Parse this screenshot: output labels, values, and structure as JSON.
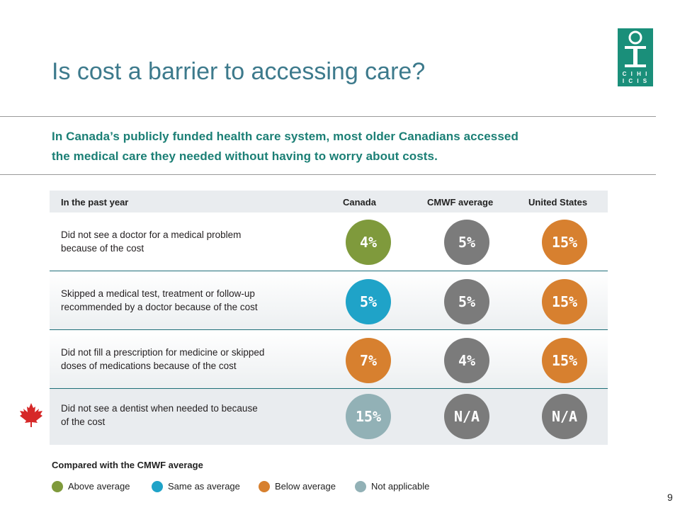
{
  "slide": {
    "title": "Is cost a barrier to accessing care?",
    "subtitle_line1": "In Canada’s publicly funded health care system, most older Canadians accessed",
    "subtitle_line2": "the medical care they needed without having to worry about costs.",
    "logo_text": "CIHI ICIS",
    "page_number": "9"
  },
  "table": {
    "headers": {
      "label": "In the past year",
      "canada": "Canada",
      "cmwf": "CMWF average",
      "us": "United States"
    },
    "rows": [
      {
        "label_line1": "Did not see a doctor for a medical problem",
        "label_line2": "because of the cost",
        "canada": "4%",
        "cmwf": "5%",
        "us": "15%",
        "canada_status": "Above average",
        "canada_color": "#7f9a3c",
        "cmwf_color": "#7b7b7b",
        "us_color": "#d7802f"
      },
      {
        "label_line1": "Skipped a medical test, treatment or follow-up",
        "label_line2": "recommended by a doctor because of the cost",
        "canada": "5%",
        "cmwf": "5%",
        "us": "15%",
        "canada_status": "Same as average",
        "canada_color": "#1fa3c8",
        "cmwf_color": "#7b7b7b",
        "us_color": "#d7802f"
      },
      {
        "label_line1": "Did not fill a prescription for medicine or skipped",
        "label_line2": "doses of medications because of the cost",
        "canada": "7%",
        "cmwf": "4%",
        "us": "15%",
        "canada_status": "Below average",
        "canada_color": "#d7802f",
        "cmwf_color": "#7b7b7b",
        "us_color": "#d7802f"
      },
      {
        "label_line1": "Did not see a dentist when needed to because",
        "label_line2": "of the cost",
        "canada": "15%",
        "cmwf": "N/A",
        "us": "N/A",
        "canada_status": "Not applicable",
        "canada_color": "#92b1b6",
        "cmwf_color": "#7b7b7b",
        "us_color": "#7b7b7b",
        "icon": "maple-leaf-icon"
      }
    ]
  },
  "legend": {
    "title": "Compared with the CMWF average",
    "items": [
      {
        "label": "Above average",
        "color": "#7f9a3c"
      },
      {
        "label": "Same as average",
        "color": "#1fa3c8"
      },
      {
        "label": "Below average",
        "color": "#d7802f"
      },
      {
        "label": "Not applicable",
        "color": "#92b1b6"
      }
    ]
  },
  "colors": {
    "title": "#3d7a8c",
    "subtitle": "#1b7f75",
    "logo_bg": "#1a8f7a",
    "row_rule": "#1e6e78",
    "maple_leaf": "#d62828"
  }
}
